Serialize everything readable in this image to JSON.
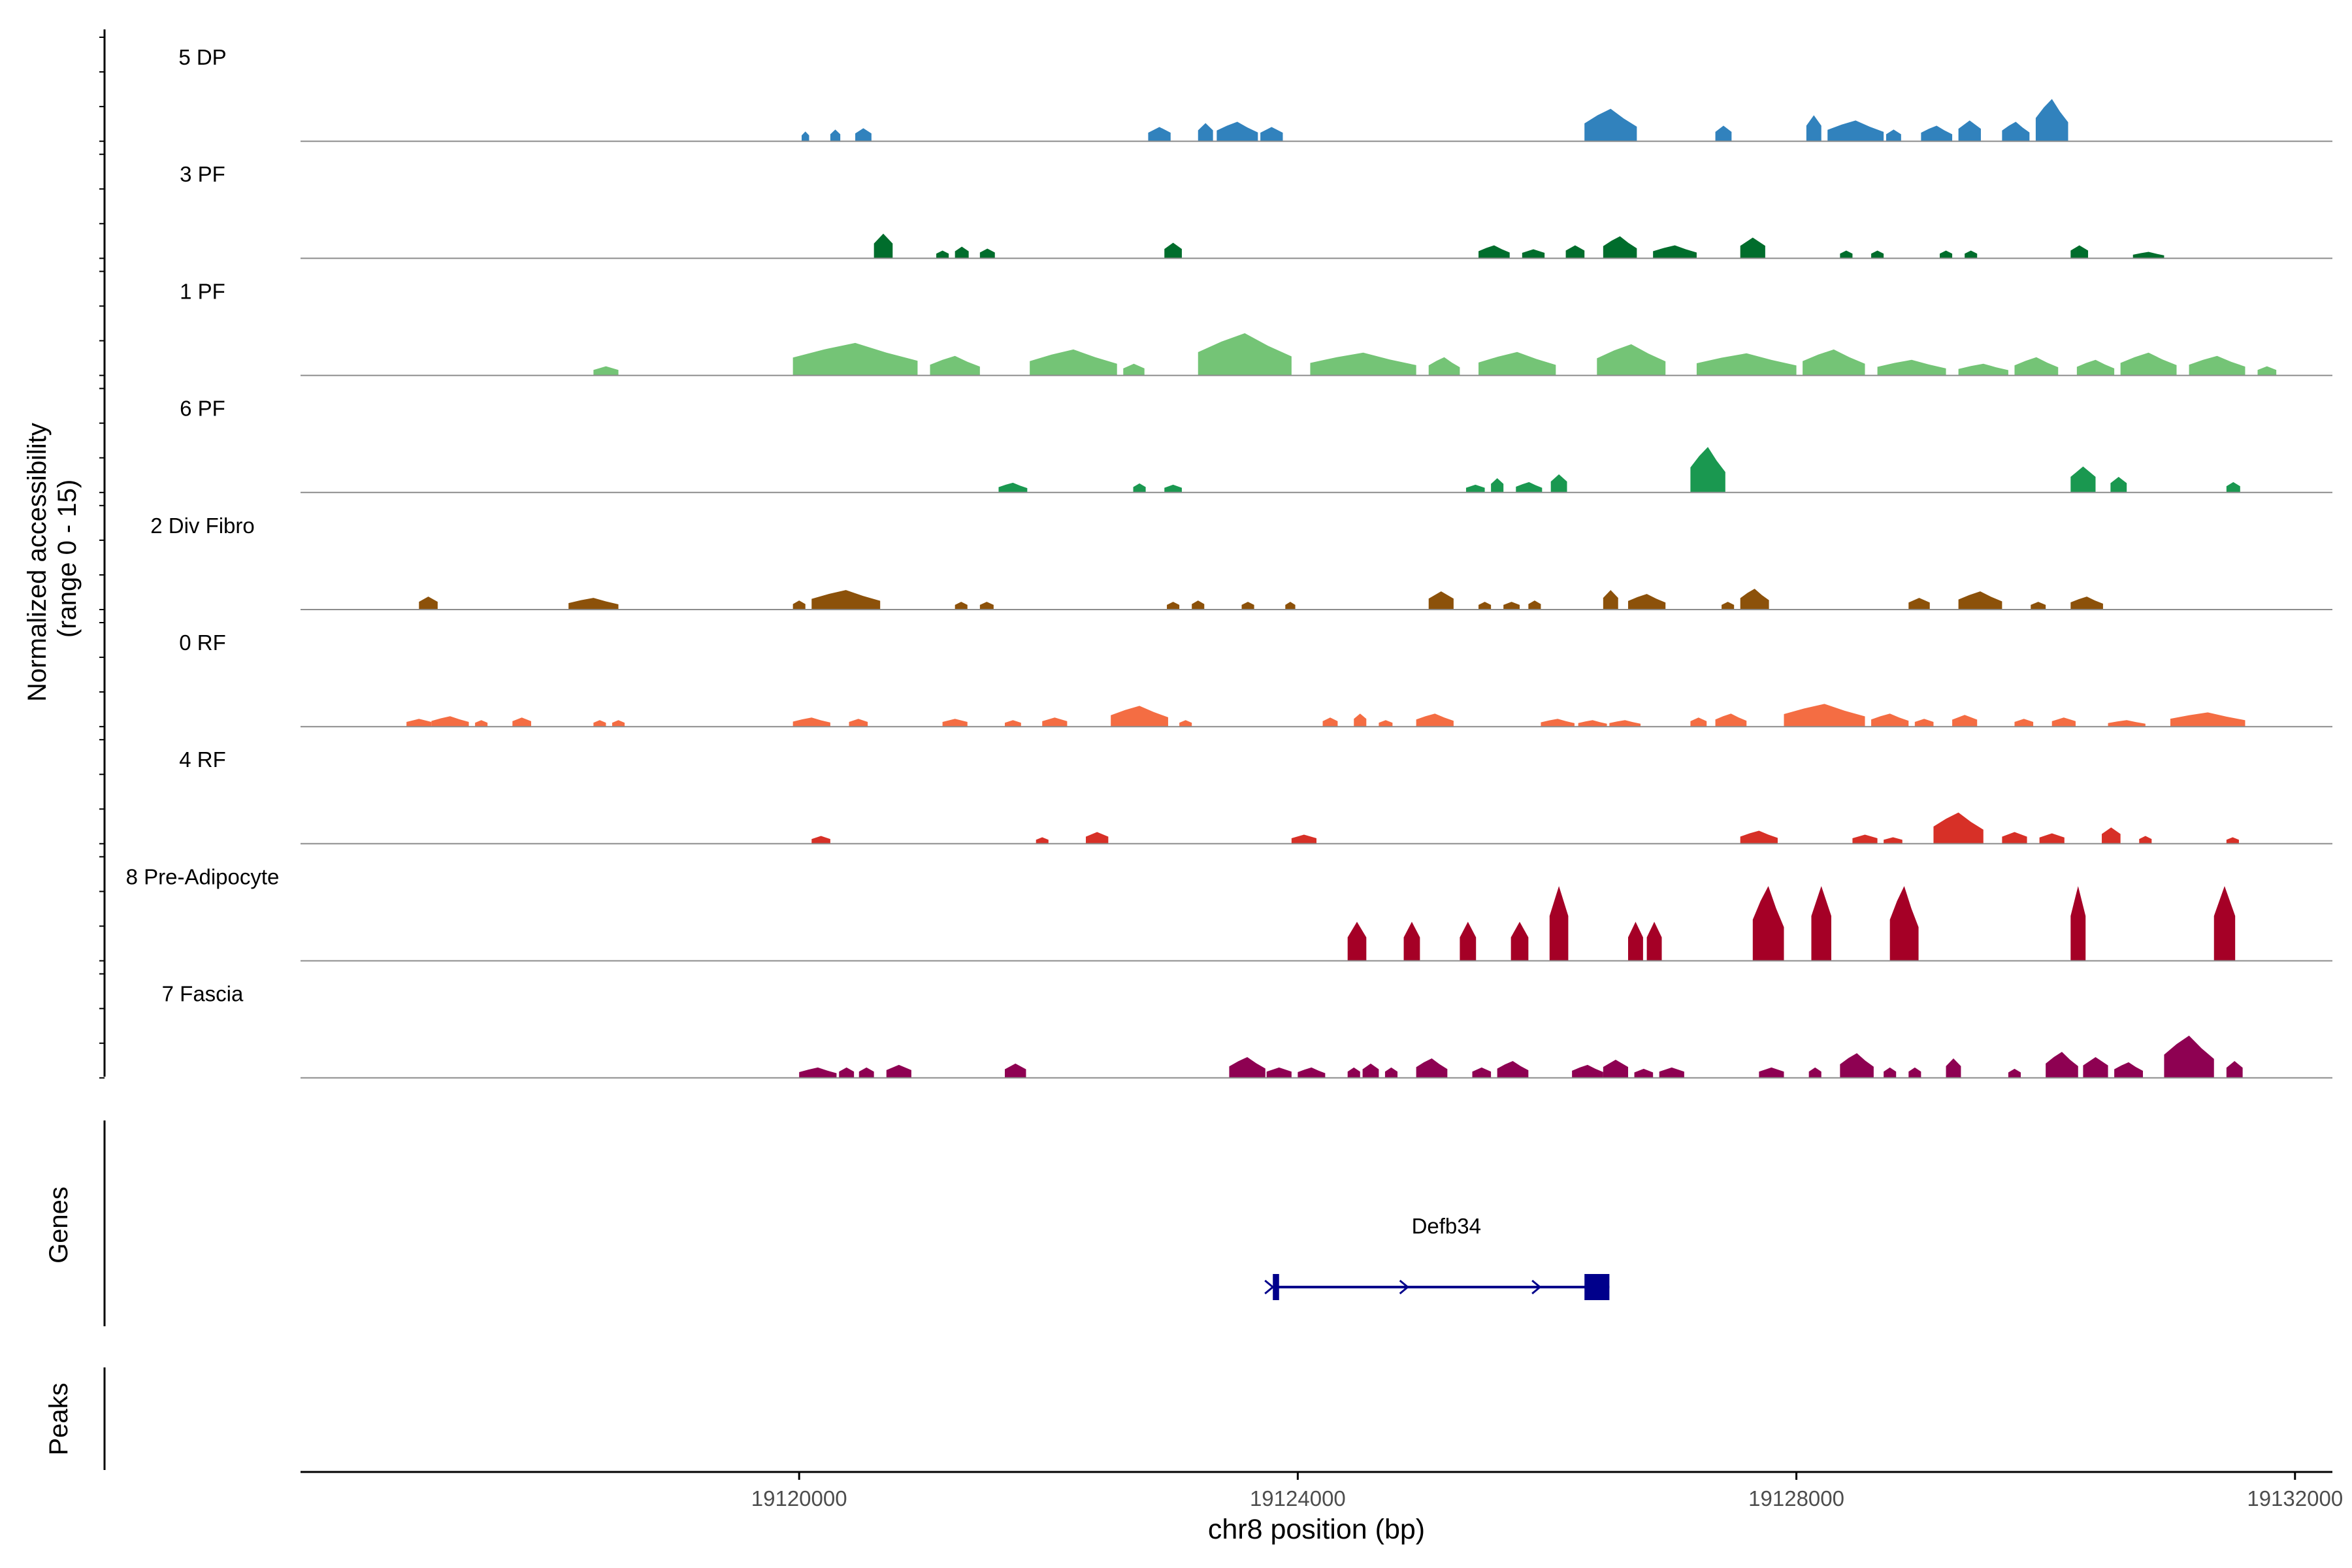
{
  "chart_data": {
    "type": "area",
    "title": "",
    "ylabel": "Normalized accessibility\n(range 0 - 15)",
    "xlabel": "chr8 position (bp)",
    "xlim": [
      19116000,
      19132300
    ],
    "ylim": [
      0,
      15
    ],
    "x_ticks": [
      19120000,
      19124000,
      19128000,
      19132000
    ],
    "x_tick_labels": [
      "19120000",
      "19124000",
      "19128000",
      "19132000"
    ],
    "tracks": [
      {
        "name": "5 DP",
        "color": "#3182bd",
        "peaks": [
          [
            19120020,
            19120080,
            1.5
          ],
          [
            19120250,
            19120330,
            1.8
          ],
          [
            19120450,
            19120580,
            2.0
          ],
          [
            19122800,
            19122980,
            2.2
          ],
          [
            19123200,
            19123320,
            2.8
          ],
          [
            19123350,
            19123680,
            3.0
          ],
          [
            19123700,
            19123880,
            2.2
          ],
          [
            19126300,
            19126720,
            5.0
          ],
          [
            19127350,
            19127480,
            2.4
          ],
          [
            19128080,
            19128200,
            4.0
          ],
          [
            19128250,
            19128700,
            3.2
          ],
          [
            19128720,
            19128840,
            1.8
          ],
          [
            19129000,
            19129250,
            2.4
          ],
          [
            19129300,
            19129480,
            3.2
          ],
          [
            19129650,
            19129870,
            3.0
          ],
          [
            19129920,
            19130180,
            6.5
          ]
        ]
      },
      {
        "name": "3 PF",
        "color": "#006d2c",
        "peaks": [
          [
            19120600,
            19120750,
            3.8
          ],
          [
            19121100,
            19121200,
            1.2
          ],
          [
            19121250,
            19121360,
            1.8
          ],
          [
            19121450,
            19121570,
            1.5
          ],
          [
            19122930,
            19123070,
            2.4
          ],
          [
            19125450,
            19125700,
            2.0
          ],
          [
            19125800,
            19125980,
            1.4
          ],
          [
            19126150,
            19126300,
            2.0
          ],
          [
            19126450,
            19126720,
            3.4
          ],
          [
            19126850,
            19127200,
            2.0
          ],
          [
            19127550,
            19127750,
            3.2
          ],
          [
            19128350,
            19128450,
            1.2
          ],
          [
            19128600,
            19128700,
            1.2
          ],
          [
            19129150,
            19129250,
            1.2
          ],
          [
            19129350,
            19129450,
            1.2
          ],
          [
            19130200,
            19130340,
            2.0
          ],
          [
            19130700,
            19130950,
            1.0
          ]
        ]
      },
      {
        "name": "1 PF",
        "color": "#74c476",
        "peaks": [
          [
            19118350,
            19118550,
            1.4
          ],
          [
            19119950,
            19120950,
            5.0
          ],
          [
            19121050,
            19121450,
            3.0
          ],
          [
            19121850,
            19122550,
            4.0
          ],
          [
            19122600,
            19122770,
            1.8
          ],
          [
            19123200,
            19123950,
            6.5
          ],
          [
            19124100,
            19124950,
            3.5
          ],
          [
            19125050,
            19125300,
            2.8
          ],
          [
            19125450,
            19126070,
            3.6
          ],
          [
            19126400,
            19126950,
            4.8
          ],
          [
            19127200,
            19128000,
            3.4
          ],
          [
            19128050,
            19128550,
            4.0
          ],
          [
            19128650,
            19129200,
            2.4
          ],
          [
            19129300,
            19129700,
            1.8
          ],
          [
            19129750,
            19130100,
            2.8
          ],
          [
            19130250,
            19130550,
            2.4
          ],
          [
            19130600,
            19131050,
            3.5
          ],
          [
            19131150,
            19131600,
            3.0
          ],
          [
            19131700,
            19131850,
            1.4
          ]
        ]
      },
      {
        "name": "6 PF",
        "color": "#1a9850",
        "peaks": [
          [
            19121600,
            19121830,
            1.5
          ],
          [
            19122680,
            19122780,
            1.4
          ],
          [
            19122930,
            19123070,
            1.2
          ],
          [
            19125350,
            19125500,
            1.2
          ],
          [
            19125550,
            19125650,
            2.2
          ],
          [
            19125750,
            19125960,
            1.6
          ],
          [
            19126030,
            19126160,
            2.8
          ],
          [
            19127150,
            19127430,
            7.0
          ],
          [
            19130200,
            19130400,
            4.0
          ],
          [
            19130520,
            19130650,
            2.4
          ],
          [
            19131450,
            19131560,
            1.6
          ]
        ]
      },
      {
        "name": "2 Div Fibro",
        "color": "#8c510a",
        "peaks": [
          [
            19116950,
            19117100,
            2.0
          ],
          [
            19118150,
            19118550,
            1.8
          ],
          [
            19119950,
            19120050,
            1.4
          ],
          [
            19120100,
            19120650,
            3.0
          ],
          [
            19121250,
            19121350,
            1.2
          ],
          [
            19121450,
            19121560,
            1.2
          ],
          [
            19122950,
            19123050,
            1.2
          ],
          [
            19123150,
            19123250,
            1.4
          ],
          [
            19123550,
            19123650,
            1.2
          ],
          [
            19123900,
            19123980,
            1.2
          ],
          [
            19125050,
            19125250,
            2.8
          ],
          [
            19125450,
            19125550,
            1.2
          ],
          [
            19125650,
            19125780,
            1.2
          ],
          [
            19125850,
            19125950,
            1.4
          ],
          [
            19126450,
            19126570,
            3.0
          ],
          [
            19126650,
            19126950,
            2.4
          ],
          [
            19127400,
            19127500,
            1.2
          ],
          [
            19127550,
            19127780,
            3.2
          ],
          [
            19128900,
            19129070,
            1.8
          ],
          [
            19129300,
            19129650,
            2.8
          ],
          [
            19129880,
            19130000,
            1.2
          ],
          [
            19130200,
            19130460,
            2.0
          ]
        ]
      },
      {
        "name": "0 RF",
        "color": "#f46d43",
        "peaks": [
          [
            19116850,
            19117050,
            1.2
          ],
          [
            19117050,
            19117350,
            1.6
          ],
          [
            19117400,
            19117500,
            1.0
          ],
          [
            19117700,
            19117850,
            1.4
          ],
          [
            19118350,
            19118450,
            1.0
          ],
          [
            19118500,
            19118600,
            1.0
          ],
          [
            19119950,
            19120250,
            1.4
          ],
          [
            19120400,
            19120550,
            1.2
          ],
          [
            19121150,
            19121350,
            1.2
          ],
          [
            19121650,
            19121780,
            1.0
          ],
          [
            19121950,
            19122150,
            1.4
          ],
          [
            19122500,
            19122960,
            3.2
          ],
          [
            19123050,
            19123150,
            1.0
          ],
          [
            19124200,
            19124320,
            1.4
          ],
          [
            19124450,
            19124550,
            2.0
          ],
          [
            19124650,
            19124760,
            1.0
          ],
          [
            19124950,
            19125250,
            2.0
          ],
          [
            19125950,
            19126220,
            1.2
          ],
          [
            19126250,
            19126480,
            1.0
          ],
          [
            19126500,
            19126750,
            1.0
          ],
          [
            19127150,
            19127280,
            1.4
          ],
          [
            19127350,
            19127600,
            2.0
          ],
          [
            19127900,
            19128550,
            3.5
          ],
          [
            19128600,
            19128900,
            2.0
          ],
          [
            19128950,
            19129100,
            1.2
          ],
          [
            19129250,
            19129450,
            1.8
          ],
          [
            19129750,
            19129900,
            1.2
          ],
          [
            19130050,
            19130240,
            1.4
          ],
          [
            19130500,
            19130800,
            1.0
          ],
          [
            19131000,
            19131600,
            2.2
          ]
        ]
      },
      {
        "name": "4 RF",
        "color": "#d73027",
        "peaks": [
          [
            19120100,
            19120250,
            1.2
          ],
          [
            19121900,
            19122000,
            1.0
          ],
          [
            19122300,
            19122480,
            1.8
          ],
          [
            19123950,
            19124150,
            1.4
          ],
          [
            19127550,
            19127850,
            2.0
          ],
          [
            19128450,
            19128650,
            1.4
          ],
          [
            19128700,
            19128850,
            1.0
          ],
          [
            19129100,
            19129500,
            4.8
          ],
          [
            19129650,
            19129850,
            1.8
          ],
          [
            19129950,
            19130150,
            1.6
          ],
          [
            19130450,
            19130600,
            2.5
          ],
          [
            19130750,
            19130850,
            1.2
          ],
          [
            19131450,
            19131550,
            1.0
          ]
        ]
      },
      {
        "name": "8 Pre-Adipocyte",
        "color": "#a50026",
        "peaks": [
          [
            19124400,
            19124550,
            6.0
          ],
          [
            19124850,
            19124980,
            6.0
          ],
          [
            19125300,
            19125430,
            6.0
          ],
          [
            19125710,
            19125850,
            6.0
          ],
          [
            19126020,
            19126170,
            11.5
          ],
          [
            19126650,
            19126770,
            6.0
          ],
          [
            19126800,
            19126920,
            6.0
          ],
          [
            19127650,
            19127900,
            11.5
          ],
          [
            19128120,
            19128280,
            11.5
          ],
          [
            19128750,
            19128980,
            11.5
          ],
          [
            19130200,
            19130320,
            11.5
          ],
          [
            19131350,
            19131520,
            11.5
          ]
        ]
      },
      {
        "name": "7 Fascia",
        "color": "#8e0152",
        "peaks": [
          [
            19120000,
            19120300,
            1.6
          ],
          [
            19120320,
            19120440,
            1.6
          ],
          [
            19120480,
            19120600,
            1.6
          ],
          [
            19120700,
            19120900,
            2.0
          ],
          [
            19121650,
            19121820,
            2.2
          ],
          [
            19123450,
            19123740,
            3.2
          ],
          [
            19123750,
            19123950,
            1.6
          ],
          [
            19124000,
            19124220,
            1.6
          ],
          [
            19124400,
            19124500,
            1.6
          ],
          [
            19124520,
            19124650,
            2.2
          ],
          [
            19124700,
            19124800,
            1.6
          ],
          [
            19124950,
            19125200,
            3.0
          ],
          [
            19125400,
            19125550,
            1.6
          ],
          [
            19125600,
            19125850,
            2.6
          ],
          [
            19126200,
            19126450,
            2.0
          ],
          [
            19126450,
            19126650,
            2.8
          ],
          [
            19126700,
            19126850,
            1.4
          ],
          [
            19126900,
            19127100,
            1.6
          ],
          [
            19127700,
            19127900,
            1.6
          ],
          [
            19128100,
            19128200,
            1.6
          ],
          [
            19128350,
            19128620,
            3.8
          ],
          [
            19128700,
            19128800,
            1.6
          ],
          [
            19128900,
            19129000,
            1.6
          ],
          [
            19129200,
            19129320,
            3.0
          ],
          [
            19129700,
            19129800,
            1.4
          ],
          [
            19130000,
            19130260,
            4.0
          ],
          [
            19130300,
            19130500,
            3.2
          ],
          [
            19130550,
            19130780,
            2.4
          ],
          [
            19130950,
            19131350,
            6.5
          ],
          [
            19131450,
            19131580,
            2.6
          ]
        ]
      }
    ],
    "genes": [
      {
        "name": "Defb34",
        "start": 19123800,
        "end": 19126500,
        "strand": "+",
        "exons": [
          [
            19123800,
            19123850
          ],
          [
            19126300,
            19126500
          ]
        ]
      }
    ],
    "panels": {
      "genes_label": "Genes",
      "peaks_label": "Peaks"
    }
  }
}
